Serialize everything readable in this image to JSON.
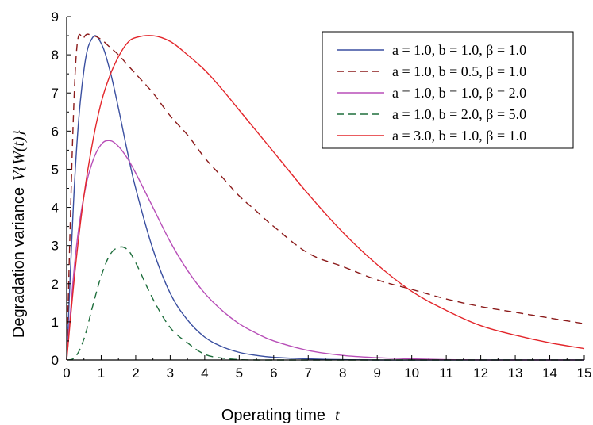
{
  "chart_data": {
    "type": "line",
    "xlabel": "Operating time",
    "xlabel_var": "t",
    "ylabel": "Degradation variance",
    "ylabel_var": "V{W(t)}",
    "xlim": [
      0,
      15
    ],
    "ylim": [
      0,
      9
    ],
    "xticks": [
      "0",
      "1",
      "2",
      "3",
      "4",
      "5",
      "6",
      "7",
      "8",
      "9",
      "10",
      "11",
      "12",
      "13",
      "14",
      "15"
    ],
    "yticks": [
      "0",
      "1",
      "2",
      "3",
      "4",
      "5",
      "6",
      "7",
      "8",
      "9"
    ],
    "grid": false,
    "legend_position": "top-right",
    "x": [
      0,
      0.25,
      0.5,
      0.75,
      1,
      1.25,
      1.5,
      1.75,
      2,
      2.5,
      3,
      3.5,
      4,
      4.5,
      5,
      5.5,
      6,
      7,
      8,
      9,
      10,
      11,
      12,
      13,
      14,
      15
    ],
    "series": [
      {
        "name": "a = 1.0, b = 1.0, β = 1.0",
        "color": "#3a4fa0",
        "dash": "solid",
        "values": [
          0,
          5.0,
          7.6,
          8.45,
          8.3,
          7.6,
          6.6,
          5.5,
          4.5,
          2.9,
          1.75,
          1.05,
          0.6,
          0.35,
          0.2,
          0.12,
          0.07,
          0.03,
          0.01,
          0,
          0,
          0,
          0,
          0,
          0,
          0
        ]
      },
      {
        "name": "a = 1.0, b = 0.5, β = 1.0",
        "color": "#8b1a1a",
        "dash": "dashed",
        "values": [
          0,
          7.6,
          8.45,
          8.5,
          8.4,
          8.2,
          8.0,
          7.75,
          7.5,
          7.0,
          6.4,
          5.9,
          5.3,
          4.8,
          4.3,
          3.9,
          3.5,
          2.8,
          2.45,
          2.1,
          1.85,
          1.6,
          1.4,
          1.25,
          1.1,
          0.95
        ]
      },
      {
        "name": "a = 1.0, b = 1.0, β = 2.0",
        "color": "#b84fb8",
        "dash": "solid",
        "values": [
          0,
          2.7,
          4.3,
          5.2,
          5.65,
          5.75,
          5.6,
          5.3,
          4.9,
          4.0,
          3.1,
          2.35,
          1.75,
          1.3,
          0.95,
          0.7,
          0.5,
          0.25,
          0.12,
          0.06,
          0.03,
          0.01,
          0,
          0,
          0,
          0
        ]
      },
      {
        "name": "a = 1.0, b = 2.0, β = 5.0",
        "color": "#1e6e3c",
        "dash": "dashed",
        "values": [
          0,
          0.08,
          0.55,
          1.4,
          2.2,
          2.75,
          2.95,
          2.9,
          2.55,
          1.6,
          0.85,
          0.45,
          0.15,
          0.05,
          0.01,
          0,
          0,
          0,
          0,
          0,
          0,
          0,
          0,
          0,
          0,
          0
        ]
      },
      {
        "name": "a = 3.0, b = 1.0, β = 1.0",
        "color": "#e3262b",
        "dash": "solid",
        "values": [
          0,
          2.4,
          4.3,
          5.7,
          6.75,
          7.45,
          7.95,
          8.3,
          8.45,
          8.5,
          8.35,
          8.0,
          7.6,
          7.1,
          6.55,
          6.0,
          5.45,
          4.35,
          3.35,
          2.5,
          1.8,
          1.3,
          0.9,
          0.65,
          0.45,
          0.3
        ]
      }
    ]
  }
}
